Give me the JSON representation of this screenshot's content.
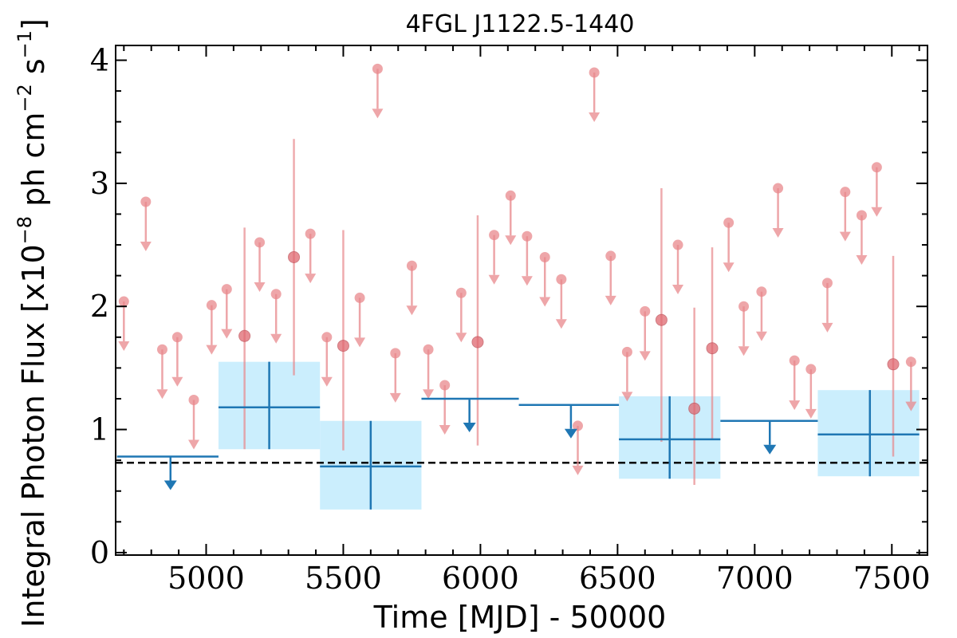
{
  "chart_data": {
    "type": "scatter",
    "title": "4FGL J1122.5-1440",
    "xlabel": "Time [MJD] - 50000",
    "ylabel": "Integral Photon Flux [x10",
    "ylabel_exp1": "−8",
    "ylabel_mid": " ph cm",
    "ylabel_exp2": "−2",
    "ylabel_mid2": " s",
    "ylabel_exp3": "−1",
    "ylabel_end": "]",
    "xlim": [
      4670,
      7630
    ],
    "ylim": [
      -0.02,
      4.12
    ],
    "xticks": [
      5000,
      5500,
      6000,
      6500,
      7000,
      7500
    ],
    "xtick_labels": [
      "5000",
      "5500",
      "6000",
      "6500",
      "7000",
      "7500"
    ],
    "yticks": [
      0,
      1,
      2,
      3,
      4
    ],
    "ytick_labels": [
      "0",
      "1",
      "2",
      "3",
      "4"
    ],
    "x_minor_step": 100,
    "y_minor_step": 0.25,
    "baseline_flux": 0.73,
    "colors": {
      "fine": "#e8888c",
      "coarse": "#1f77b4",
      "box": "#cbeefd",
      "baseline": "#000000"
    },
    "fine_upper_limits": [
      {
        "x": 4700,
        "y": 2.04
      },
      {
        "x": 4780,
        "y": 2.85
      },
      {
        "x": 4840,
        "y": 1.65
      },
      {
        "x": 4895,
        "y": 1.75
      },
      {
        "x": 4955,
        "y": 1.24
      },
      {
        "x": 5020,
        "y": 2.01
      },
      {
        "x": 5075,
        "y": 2.14
      },
      {
        "x": 5195,
        "y": 2.52
      },
      {
        "x": 5255,
        "y": 2.1
      },
      {
        "x": 5380,
        "y": 2.59
      },
      {
        "x": 5440,
        "y": 1.75
      },
      {
        "x": 5560,
        "y": 2.07
      },
      {
        "x": 5625,
        "y": 3.93
      },
      {
        "x": 5690,
        "y": 1.62
      },
      {
        "x": 5750,
        "y": 2.33
      },
      {
        "x": 5810,
        "y": 1.65
      },
      {
        "x": 5870,
        "y": 1.36
      },
      {
        "x": 5930,
        "y": 2.11
      },
      {
        "x": 6050,
        "y": 2.58
      },
      {
        "x": 6110,
        "y": 2.9
      },
      {
        "x": 6170,
        "y": 2.57
      },
      {
        "x": 6235,
        "y": 2.4
      },
      {
        "x": 6295,
        "y": 2.22
      },
      {
        "x": 6355,
        "y": 1.03
      },
      {
        "x": 6415,
        "y": 3.9
      },
      {
        "x": 6475,
        "y": 2.41
      },
      {
        "x": 6535,
        "y": 1.63
      },
      {
        "x": 6600,
        "y": 1.96
      },
      {
        "x": 6720,
        "y": 2.5
      },
      {
        "x": 6905,
        "y": 2.68
      },
      {
        "x": 6960,
        "y": 2.0
      },
      {
        "x": 7025,
        "y": 2.12
      },
      {
        "x": 7085,
        "y": 2.96
      },
      {
        "x": 7145,
        "y": 1.56
      },
      {
        "x": 7205,
        "y": 1.49
      },
      {
        "x": 7265,
        "y": 2.19
      },
      {
        "x": 7330,
        "y": 2.93
      },
      {
        "x": 7390,
        "y": 2.74
      },
      {
        "x": 7445,
        "y": 3.13
      },
      {
        "x": 7570,
        "y": 1.55
      }
    ],
    "fine_detections": [
      {
        "x": 5140,
        "y": 1.76,
        "lo": 0.84,
        "hi": 2.64
      },
      {
        "x": 5320,
        "y": 2.4,
        "lo": 1.44,
        "hi": 3.36
      },
      {
        "x": 5500,
        "y": 1.68,
        "lo": 0.83,
        "hi": 2.62
      },
      {
        "x": 5990,
        "y": 1.71,
        "lo": 0.87,
        "hi": 2.74
      },
      {
        "x": 6660,
        "y": 1.89,
        "lo": 0.9,
        "hi": 2.96
      },
      {
        "x": 6780,
        "y": 1.17,
        "lo": 0.55,
        "hi": 1.99
      },
      {
        "x": 6845,
        "y": 1.66,
        "lo": 0.92,
        "hi": 2.48
      },
      {
        "x": 7505,
        "y": 1.53,
        "lo": 0.78,
        "hi": 2.41
      }
    ],
    "coarse_upper_limits": [
      {
        "x0": 4675,
        "x1": 5045,
        "xc": 4870,
        "y": 0.78
      },
      {
        "x0": 5785,
        "x1": 6140,
        "xc": 5960,
        "y": 1.25
      },
      {
        "x0": 6140,
        "x1": 6505,
        "xc": 6330,
        "y": 1.2
      },
      {
        "x0": 6875,
        "x1": 7230,
        "xc": 7055,
        "y": 1.07
      }
    ],
    "coarse_detections": [
      {
        "x0": 5045,
        "x1": 5415,
        "xc": 5230,
        "y": 1.18,
        "lo": 0.84,
        "hi": 1.55
      },
      {
        "x0": 5415,
        "x1": 5785,
        "xc": 5600,
        "y": 0.7,
        "lo": 0.35,
        "hi": 1.07
      },
      {
        "x0": 6505,
        "x1": 6875,
        "xc": 6690,
        "y": 0.92,
        "lo": 0.6,
        "hi": 1.27
      },
      {
        "x0": 7230,
        "x1": 7600,
        "xc": 7420,
        "y": 0.96,
        "lo": 0.62,
        "hi": 1.32
      }
    ]
  }
}
